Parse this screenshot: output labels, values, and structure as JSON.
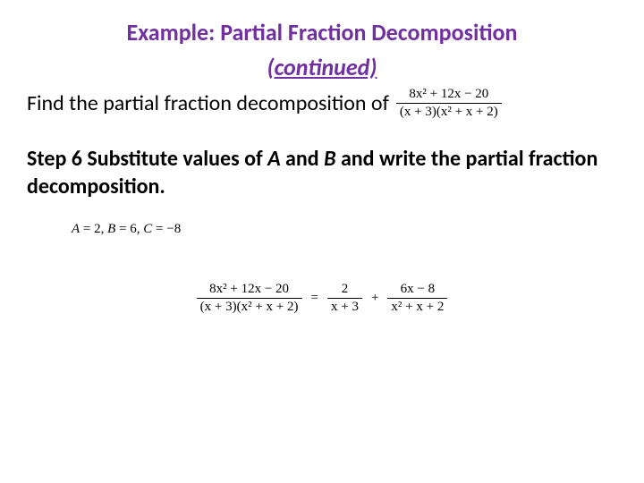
{
  "title": "Example:  Partial Fraction Decomposition",
  "subtitle": "(continued)",
  "prompt": "Find the partial fraction decomposition of",
  "given_fraction": {
    "num": "8x² + 12x − 20",
    "den": "(x + 3)(x² + x + 2)"
  },
  "step": {
    "label": "Step 6",
    "text_before_vars": "  Substitute values of ",
    "var_a": "A",
    "mid": " and ",
    "var_b": "B",
    "text_after_vars": " and write the partial fraction decomposition."
  },
  "values_line": {
    "a_label": "A",
    "a_eq": " = 2, ",
    "b_label": "B",
    "b_eq": " = 6, ",
    "c_label": "C",
    "c_eq": " = −8"
  },
  "result": {
    "lhs": {
      "num": "8x² + 12x − 20",
      "den": "(x + 3)(x² + x + 2)"
    },
    "eq": "=",
    "t1": {
      "num": "2",
      "den": "x + 3"
    },
    "plus": "+",
    "t2": {
      "num": "6x − 8",
      "den": "x² + x + 2"
    }
  },
  "colors": {
    "title_color": "#7030a0",
    "text_color": "#000000",
    "background": "#ffffff"
  },
  "fonts": {
    "body": "Calibri",
    "math": "Cambria Math",
    "title_size_pt": 20,
    "body_size_pt": 18,
    "math_size_pt": 11
  }
}
